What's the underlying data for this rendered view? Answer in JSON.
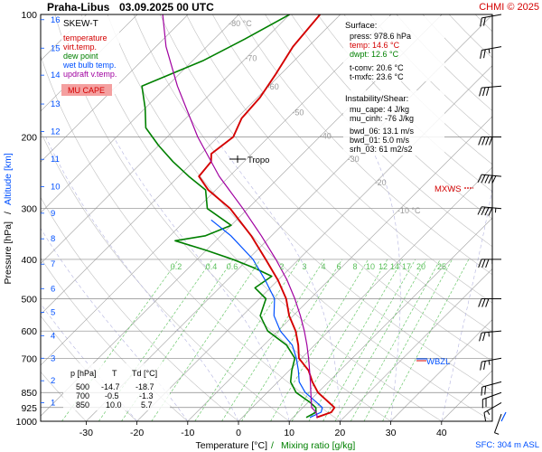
{
  "header": {
    "title": "Praha-Libus",
    "datetime": "03.09.2025 00 UTC",
    "credit": "CHMI © 2025"
  },
  "legend": {
    "diagram_type": "SKEW-T",
    "items": [
      {
        "label": "temperature",
        "color": "#d40000"
      },
      {
        "label": "virt.temp.",
        "color": "#d40000"
      },
      {
        "label": "dew point",
        "color": "#008000"
      },
      {
        "label": "wet bulb temp.",
        "color": "#0050ff"
      },
      {
        "label": "updraft v.temp.",
        "color": "#a000a0"
      }
    ],
    "mucape_label": "MU CAPE"
  },
  "surface_box": {
    "heading": "Surface:",
    "lines": [
      {
        "text": "press: 978.6 hPa",
        "color": "#000000"
      },
      {
        "text": "temp: 14.6 °C",
        "color": "#d40000"
      },
      {
        "text": "dwpt: 12.6 °C",
        "color": "#008000"
      },
      {
        "text": "t-conv: 20.6 °C",
        "color": "#000000"
      },
      {
        "text": "t-mxfc: 23.6 °C",
        "color": "#000000"
      }
    ]
  },
  "instability_box": {
    "heading": "Instability/Shear:",
    "lines": [
      "mu_cape: 4 J/kg",
      "mu_cinh: -76 J/kg",
      "bwd_06: 13.1 m/s",
      "bwd_01: 5.0 m/s",
      "srh_03: 61 m2/s2"
    ]
  },
  "level_table": {
    "headers": [
      "p [hPa]",
      "T",
      "Td [°C]"
    ],
    "rows": [
      [
        "500",
        "-14.7",
        "-18.7"
      ],
      [
        "700",
        "-0.5",
        "-1.3"
      ],
      [
        "850",
        "10.0",
        "5.7"
      ]
    ]
  },
  "annotations": {
    "tropo": "Tropo",
    "mxws": "MXWS",
    "wbzl": "WBZL",
    "sfc": "SFC: 304 m ASL"
  },
  "axes": {
    "ylabel": "Pressure [hPa]",
    "ylabel_sep": "/",
    "ylabel_alt": "Altitude [km]",
    "xlabel": "Temperature [°C]",
    "xlabel_sep": "/",
    "xlabel_mix": "Mixing ratio [g/kg]"
  },
  "chart_data": {
    "type": "line",
    "x_range": [
      -35,
      45
    ],
    "y_range_hpa": [
      1000,
      100
    ],
    "y_scale": "log",
    "skew": true,
    "pressure_ticks": [
      1000,
      925,
      850,
      700,
      600,
      500,
      400,
      300,
      200,
      100
    ],
    "temperature_ticks": [
      -30,
      -20,
      -10,
      0,
      10,
      20,
      30,
      40
    ],
    "altitude_ticks_km": [
      {
        "km": 1,
        "p": 900
      },
      {
        "km": 2,
        "p": 795
      },
      {
        "km": 3,
        "p": 700
      },
      {
        "km": 4,
        "p": 616
      },
      {
        "km": 5,
        "p": 540
      },
      {
        "km": 6,
        "p": 472
      },
      {
        "km": 7,
        "p": 411
      },
      {
        "km": 8,
        "p": 356
      },
      {
        "km": 9,
        "p": 308
      },
      {
        "km": 10,
        "p": 265
      },
      {
        "km": 11,
        "p": 227
      },
      {
        "km": 12,
        "p": 194
      },
      {
        "km": 13,
        "p": 166
      },
      {
        "km": 14,
        "p": 141
      },
      {
        "km": 15,
        "p": 121
      },
      {
        "km": 16,
        "p": 103
      }
    ],
    "isotherm_labels": [
      {
        "t": -80,
        "label": "-80 °C",
        "p": 107
      },
      {
        "t": -70,
        "label": "-70",
        "p": 130
      },
      {
        "t": -60,
        "label": "-60",
        "p": 153
      },
      {
        "t": -50,
        "label": "-50",
        "p": 177
      },
      {
        "t": -40,
        "label": "-40",
        "p": 202
      },
      {
        "t": -30,
        "label": "-30",
        "p": 230
      },
      {
        "t": -20,
        "label": "-20",
        "p": 263
      },
      {
        "t": -10,
        "label": "-10 °C",
        "p": 308
      }
    ],
    "mixing_ratio_labels": [
      "0.2",
      "0.4",
      "0.6",
      "1",
      "2",
      "3",
      "4",
      "6",
      "8",
      "10",
      "12",
      "14",
      "17",
      "20",
      "25"
    ],
    "series": [
      {
        "name": "temperature",
        "color": "#d40000",
        "points": [
          [
            978.6,
            14.6
          ],
          [
            950,
            16.5
          ],
          [
            925,
            16.2
          ],
          [
            900,
            14.2
          ],
          [
            850,
            10.0
          ],
          [
            800,
            6.8
          ],
          [
            750,
            3.8
          ],
          [
            700,
            -0.5
          ],
          [
            650,
            -3.2
          ],
          [
            600,
            -6.5
          ],
          [
            550,
            -10.8
          ],
          [
            500,
            -14.7
          ],
          [
            450,
            -20.0
          ],
          [
            400,
            -26.5
          ],
          [
            350,
            -34.0
          ],
          [
            300,
            -43.5
          ],
          [
            270,
            -51.5
          ],
          [
            250,
            -56.0
          ],
          [
            230,
            -56.5
          ],
          [
            220,
            -58.0
          ],
          [
            200,
            -57.0
          ],
          [
            180,
            -59.0
          ],
          [
            160,
            -59.5
          ],
          [
            140,
            -61.0
          ],
          [
            120,
            -63.0
          ],
          [
            100,
            -64.0
          ]
        ]
      },
      {
        "name": "dew point",
        "color": "#008000",
        "points": [
          [
            978.6,
            12.6
          ],
          [
            950,
            13.5
          ],
          [
            925,
            12.5
          ],
          [
            900,
            10.5
          ],
          [
            850,
            5.7
          ],
          [
            800,
            2.5
          ],
          [
            750,
            0.5
          ],
          [
            700,
            -1.3
          ],
          [
            650,
            -5.5
          ],
          [
            600,
            -12.0
          ],
          [
            550,
            -16.5
          ],
          [
            500,
            -18.7
          ],
          [
            470,
            -23.0
          ],
          [
            440,
            -22.0
          ],
          [
            420,
            -27.0
          ],
          [
            400,
            -33.0
          ],
          [
            380,
            -40.0
          ],
          [
            360,
            -48.0
          ],
          [
            350,
            -43.0
          ],
          [
            330,
            -40.0
          ],
          [
            300,
            -48.0
          ],
          [
            270,
            -52.0
          ],
          [
            250,
            -58.0
          ],
          [
            230,
            -64.0
          ],
          [
            210,
            -70.0
          ],
          [
            190,
            -76.0
          ],
          [
            170,
            -80.0
          ],
          [
            150,
            -85.0
          ],
          [
            130,
            -78.0
          ],
          [
            115,
            -74.0
          ],
          [
            100,
            -70.0
          ]
        ]
      },
      {
        "name": "wet bulb temp.",
        "color": "#0050ff",
        "points": [
          [
            978.6,
            13.3
          ],
          [
            950,
            14.5
          ],
          [
            925,
            13.8
          ],
          [
            900,
            11.8
          ],
          [
            850,
            7.5
          ],
          [
            800,
            4.2
          ],
          [
            750,
            1.8
          ],
          [
            700,
            -1.0
          ],
          [
            650,
            -4.4
          ],
          [
            600,
            -9.5
          ],
          [
            550,
            -13.8
          ],
          [
            500,
            -17.0
          ],
          [
            450,
            -22.5
          ],
          [
            400,
            -29.0
          ],
          [
            350,
            -38.0
          ],
          [
            320,
            -45.0
          ]
        ]
      },
      {
        "name": "updraft v.temp.",
        "color": "#a000a0",
        "points": [
          [
            978.6,
            14.8
          ],
          [
            950,
            13.5
          ],
          [
            925,
            11.7
          ],
          [
            900,
            10.7
          ],
          [
            850,
            8.6
          ],
          [
            800,
            6.4
          ],
          [
            750,
            4.0
          ],
          [
            700,
            1.4
          ],
          [
            650,
            -1.5
          ],
          [
            600,
            -4.8
          ],
          [
            550,
            -8.6
          ],
          [
            500,
            -13.0
          ],
          [
            450,
            -18.2
          ],
          [
            400,
            -24.5
          ],
          [
            350,
            -32.0
          ],
          [
            300,
            -41.0
          ],
          [
            250,
            -52.0
          ],
          [
            200,
            -64.0
          ],
          [
            150,
            -78.0
          ],
          [
            120,
            -88.0
          ],
          [
            100,
            -95.0
          ]
        ]
      }
    ],
    "wind_barbs": [
      {
        "p": 960,
        "dir": 200,
        "kt": 5
      },
      {
        "p": 900,
        "dir": 240,
        "kt": 15
      },
      {
        "p": 850,
        "dir": 250,
        "kt": 20
      },
      {
        "p": 800,
        "dir": 255,
        "kt": 20
      },
      {
        "p": 700,
        "dir": 260,
        "kt": 25
      },
      {
        "p": 600,
        "dir": 265,
        "kt": 25
      },
      {
        "p": 500,
        "dir": 270,
        "kt": 30
      },
      {
        "p": 400,
        "dir": 270,
        "kt": 35
      },
      {
        "p": 300,
        "dir": 275,
        "kt": 45
      },
      {
        "p": 250,
        "dir": 275,
        "kt": 50
      },
      {
        "p": 200,
        "dir": 270,
        "kt": 40
      },
      {
        "p": 150,
        "dir": 265,
        "kt": 30
      },
      {
        "p": 120,
        "dir": 260,
        "kt": 25
      },
      {
        "p": 100,
        "dir": 260,
        "kt": 20
      }
    ]
  }
}
